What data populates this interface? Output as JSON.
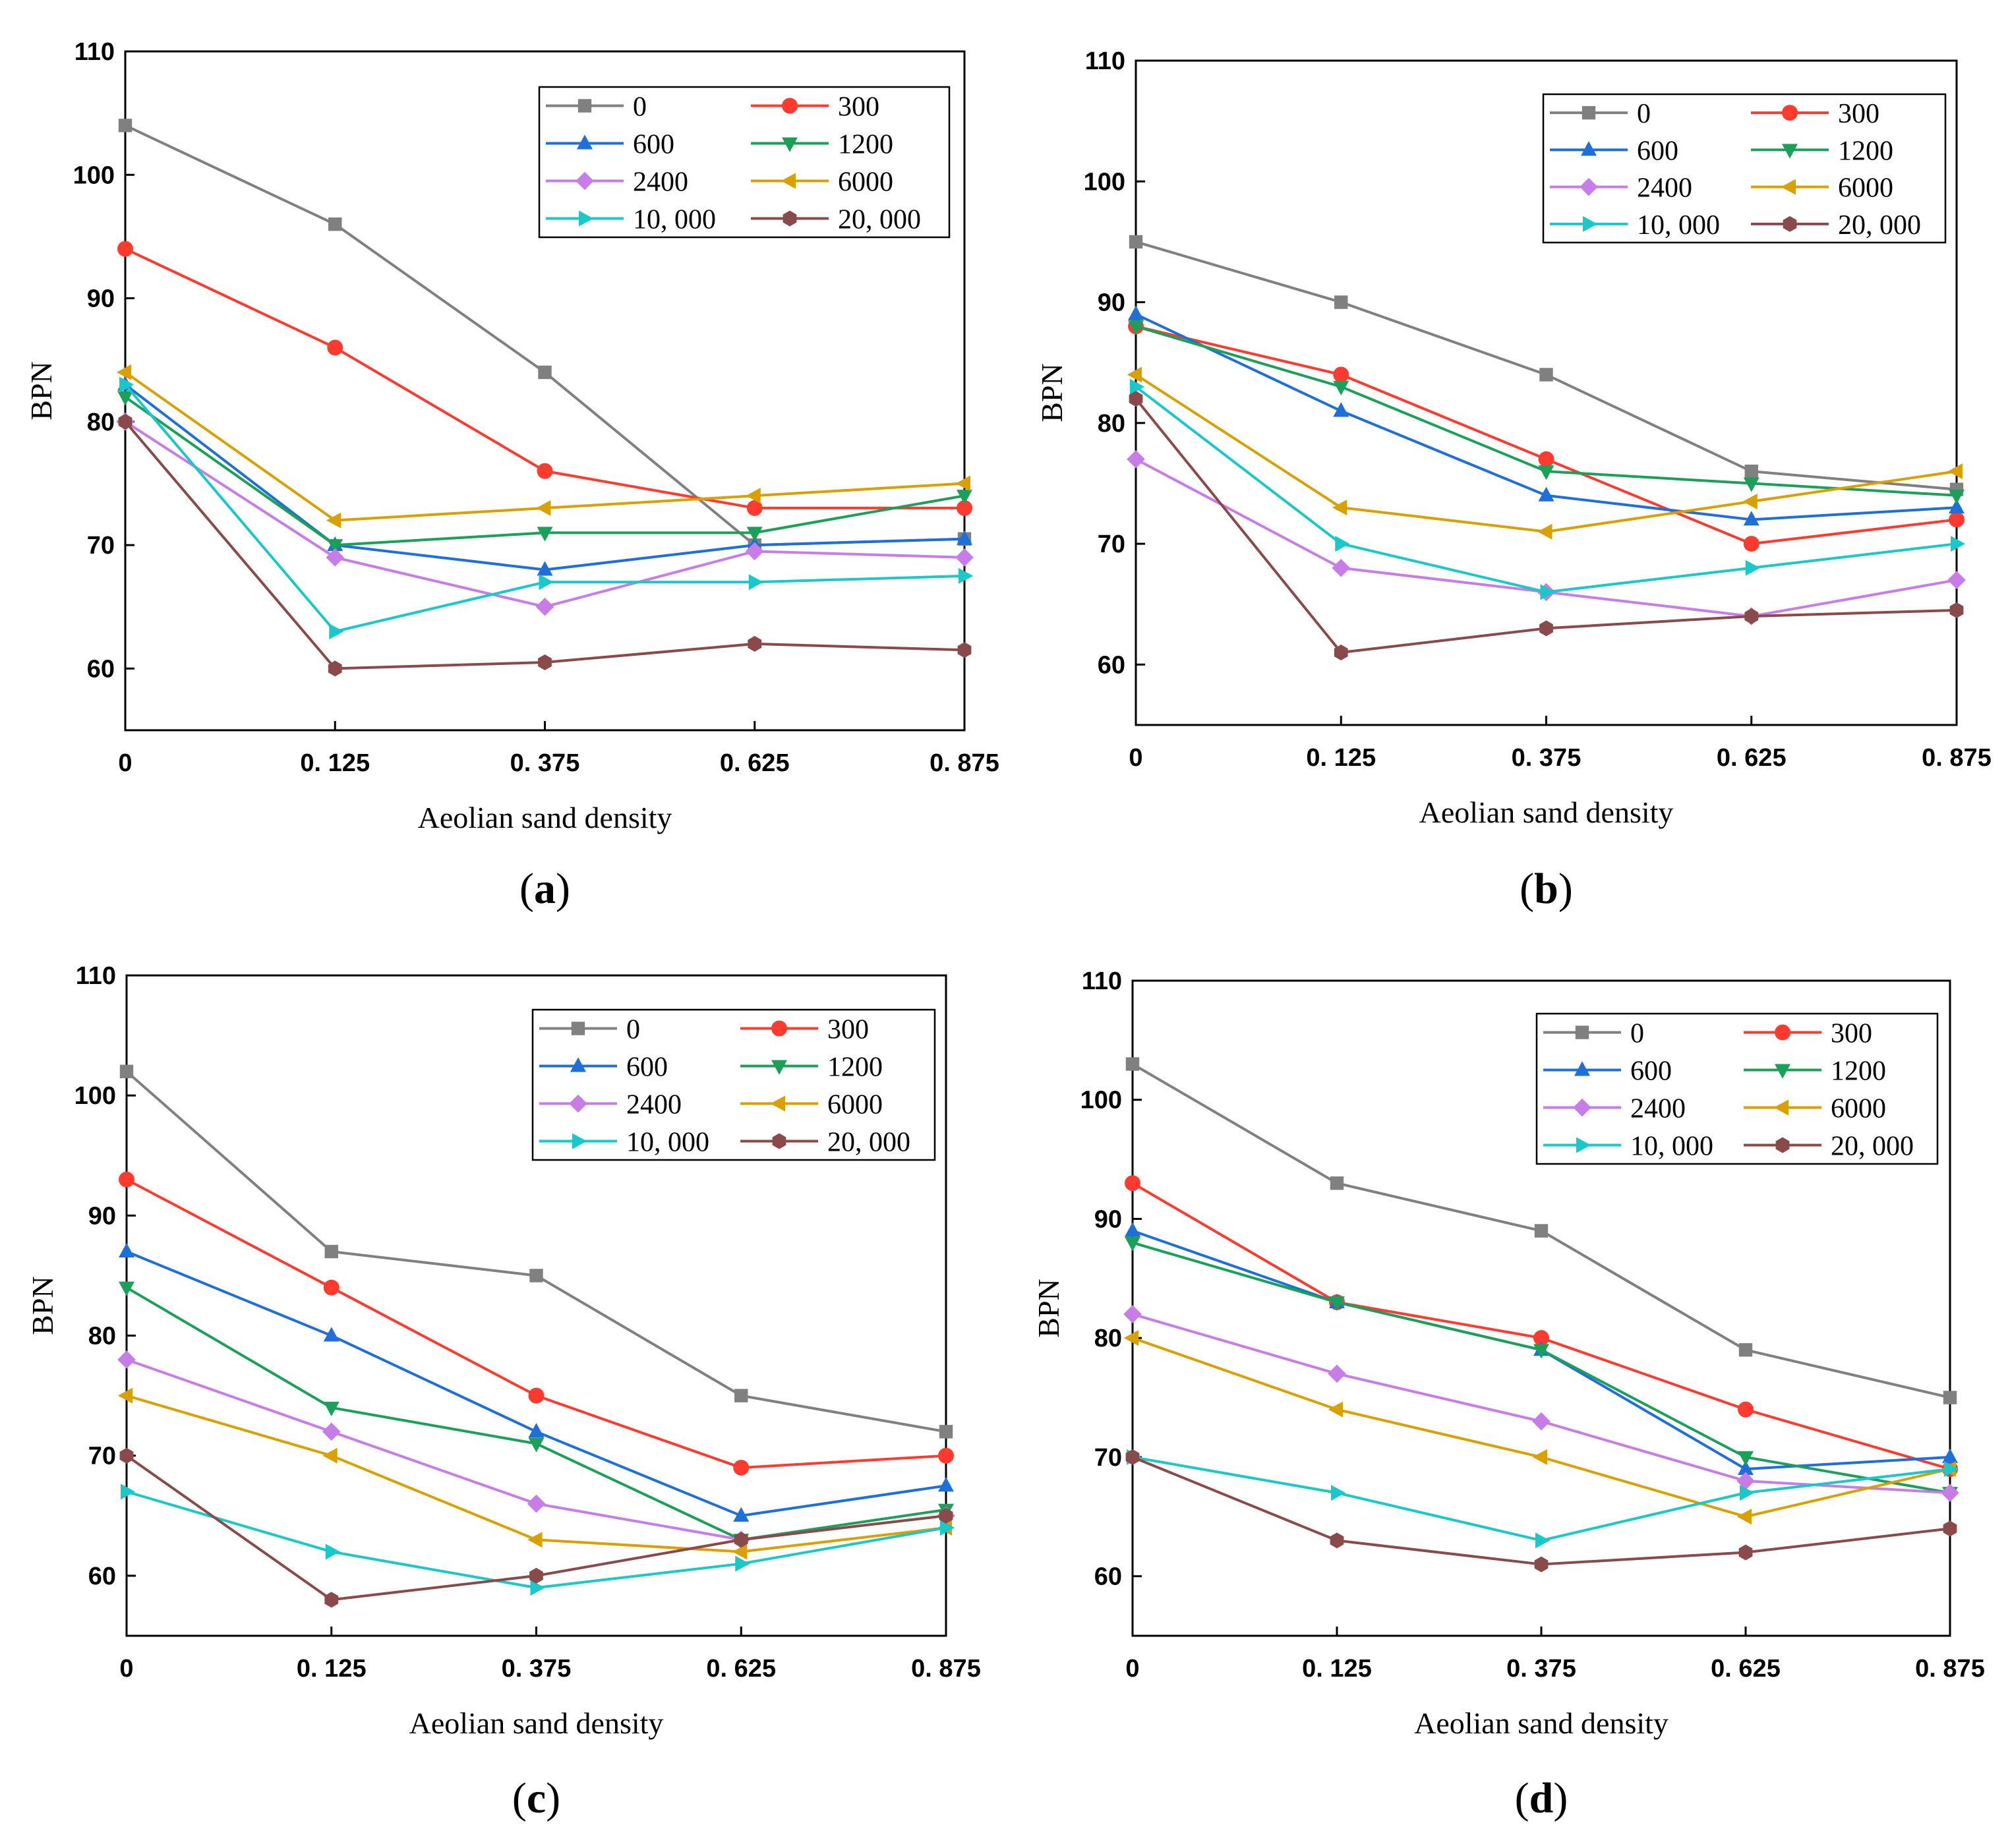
{
  "chart_data": [
    {
      "type": "line",
      "panel_label": "a",
      "xlabel": "Aeolian sand density",
      "ylabel": "BPN",
      "categories": [
        "0",
        "0. 125",
        "0. 375",
        "0. 625",
        "0. 875"
      ],
      "ylim": [
        55,
        110
      ],
      "yticks": [
        60,
        70,
        80,
        90,
        100,
        110
      ],
      "legend_position": "top-right",
      "series": [
        {
          "name": "0",
          "color": "#808080",
          "marker": "square",
          "values": [
            104,
            96,
            84,
            70,
            70.5
          ]
        },
        {
          "name": "300",
          "color": "#ff3b30",
          "marker": "circle",
          "values": [
            94,
            86,
            76,
            73,
            73
          ]
        },
        {
          "name": "600",
          "color": "#1e6fd9",
          "marker": "triangle-up",
          "values": [
            83,
            70,
            68,
            70,
            70.5
          ]
        },
        {
          "name": "1200",
          "color": "#1aa058",
          "marker": "triangle-down",
          "values": [
            82,
            70,
            71,
            71,
            74
          ]
        },
        {
          "name": "2400",
          "color": "#c77ce8",
          "marker": "diamond",
          "values": [
            80,
            69,
            65,
            69.5,
            69
          ]
        },
        {
          "name": "6000",
          "color": "#d9a000",
          "marker": "triangle-left",
          "values": [
            84,
            72,
            73,
            74,
            75
          ]
        },
        {
          "name": "10, 000",
          "color": "#19c8c8",
          "marker": "triangle-right",
          "values": [
            83,
            63,
            67,
            67,
            67.5
          ]
        },
        {
          "name": "20, 000",
          "color": "#8b4a4a",
          "marker": "hexagon",
          "values": [
            80,
            60,
            60.5,
            62,
            61.5
          ]
        }
      ]
    },
    {
      "type": "line",
      "panel_label": "b",
      "xlabel": "Aeolian sand density",
      "ylabel": "BPN",
      "categories": [
        "0",
        "0. 125",
        "0. 375",
        "0. 625",
        "0. 875"
      ],
      "ylim": [
        55,
        110
      ],
      "yticks": [
        60,
        70,
        80,
        90,
        100,
        110
      ],
      "legend_position": "top-right",
      "series": [
        {
          "name": "0",
          "color": "#808080",
          "marker": "square",
          "values": [
            95,
            90,
            84,
            76,
            74.5
          ]
        },
        {
          "name": "300",
          "color": "#ff3b30",
          "marker": "circle",
          "values": [
            88,
            84,
            77,
            70,
            72
          ]
        },
        {
          "name": "600",
          "color": "#1e6fd9",
          "marker": "triangle-up",
          "values": [
            89,
            81,
            74,
            72,
            73
          ]
        },
        {
          "name": "1200",
          "color": "#1aa058",
          "marker": "triangle-down",
          "values": [
            88,
            83,
            76,
            75,
            74
          ]
        },
        {
          "name": "2400",
          "color": "#c77ce8",
          "marker": "diamond",
          "values": [
            77,
            68,
            66,
            64,
            67
          ]
        },
        {
          "name": "6000",
          "color": "#d9a000",
          "marker": "triangle-left",
          "values": [
            84,
            73,
            71,
            73.5,
            76
          ]
        },
        {
          "name": "10, 000",
          "color": "#19c8c8",
          "marker": "triangle-right",
          "values": [
            83,
            70,
            66,
            68,
            70
          ]
        },
        {
          "name": "20, 000",
          "color": "#8b4a4a",
          "marker": "hexagon",
          "values": [
            82,
            61,
            63,
            64,
            64.5
          ]
        }
      ]
    },
    {
      "type": "line",
      "panel_label": "c",
      "xlabel": "Aeolian sand density",
      "ylabel": "BPN",
      "categories": [
        "0",
        "0. 125",
        "0. 375",
        "0. 625",
        "0. 875"
      ],
      "ylim": [
        55,
        110
      ],
      "yticks": [
        60,
        70,
        80,
        90,
        100,
        110
      ],
      "legend_position": "top-right",
      "series": [
        {
          "name": "0",
          "color": "#808080",
          "marker": "square",
          "values": [
            102,
            87,
            85,
            75,
            72
          ]
        },
        {
          "name": "300",
          "color": "#ff3b30",
          "marker": "circle",
          "values": [
            93,
            84,
            75,
            69,
            70
          ]
        },
        {
          "name": "600",
          "color": "#1e6fd9",
          "marker": "triangle-up",
          "values": [
            87,
            80,
            72,
            65,
            67.5
          ]
        },
        {
          "name": "1200",
          "color": "#1aa058",
          "marker": "triangle-down",
          "values": [
            84,
            74,
            71,
            63,
            65.5
          ]
        },
        {
          "name": "2400",
          "color": "#c77ce8",
          "marker": "diamond",
          "values": [
            78,
            72,
            66,
            63,
            65
          ]
        },
        {
          "name": "6000",
          "color": "#d9a000",
          "marker": "triangle-left",
          "values": [
            75,
            70,
            63,
            62,
            64
          ]
        },
        {
          "name": "10, 000",
          "color": "#19c8c8",
          "marker": "triangle-right",
          "values": [
            67,
            62,
            59,
            61,
            64
          ]
        },
        {
          "name": "20, 000",
          "color": "#8b4a4a",
          "marker": "hexagon",
          "values": [
            70,
            58,
            60,
            63,
            65
          ]
        }
      ]
    },
    {
      "type": "line",
      "panel_label": "d",
      "xlabel": "Aeolian sand density",
      "ylabel": "BPN",
      "categories": [
        "0",
        "0. 125",
        "0. 375",
        "0. 625",
        "0. 875"
      ],
      "ylim": [
        55,
        110
      ],
      "yticks": [
        60,
        70,
        80,
        90,
        100,
        110
      ],
      "legend_position": "top-right",
      "series": [
        {
          "name": "0",
          "color": "#808080",
          "marker": "square",
          "values": [
            103,
            93,
            89,
            79,
            75
          ]
        },
        {
          "name": "300",
          "color": "#ff3b30",
          "marker": "circle",
          "values": [
            93,
            83,
            80,
            74,
            69
          ]
        },
        {
          "name": "600",
          "color": "#1e6fd9",
          "marker": "triangle-up",
          "values": [
            89,
            83,
            79,
            69,
            70
          ]
        },
        {
          "name": "1200",
          "color": "#1aa058",
          "marker": "triangle-down",
          "values": [
            88,
            83,
            79,
            70,
            67
          ]
        },
        {
          "name": "2400",
          "color": "#c77ce8",
          "marker": "diamond",
          "values": [
            82,
            77,
            73,
            68,
            67
          ]
        },
        {
          "name": "6000",
          "color": "#d9a000",
          "marker": "triangle-left",
          "values": [
            80,
            74,
            70,
            65,
            69
          ]
        },
        {
          "name": "10, 000",
          "color": "#19c8c8",
          "marker": "triangle-right",
          "values": [
            70,
            67,
            63,
            67,
            69
          ]
        },
        {
          "name": "20, 000",
          "color": "#8b4a4a",
          "marker": "hexagon",
          "values": [
            70,
            63,
            61,
            62,
            64
          ]
        }
      ]
    }
  ]
}
